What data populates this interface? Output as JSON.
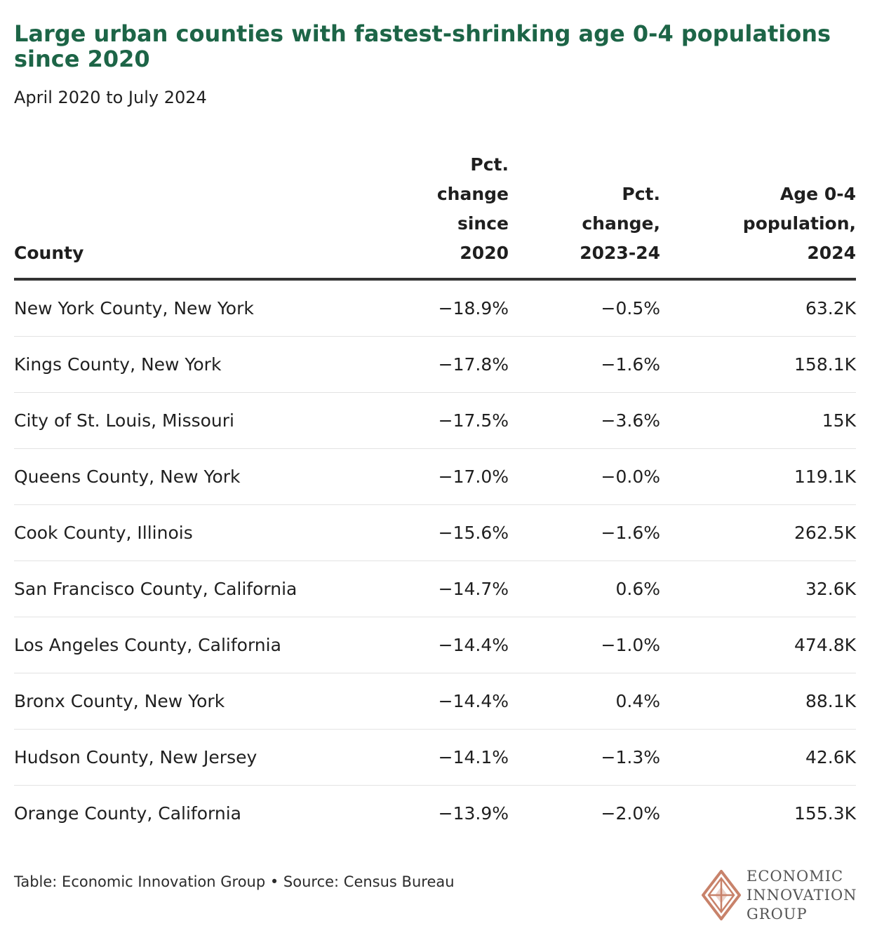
{
  "chart_data": {
    "type": "table",
    "title": "Large urban counties with fastest-shrinking age 0-4 populations since 2020",
    "subtitle": "April 2020 to July 2024",
    "columns": [
      "County",
      "Pct.\nchange\nsince\n2020",
      "Pct.\nchange,\n2023-24",
      "Age 0-4\npopulation,\n2024"
    ],
    "rows": [
      [
        "New York County, New York",
        "−18.9%",
        "−0.5%",
        "63.2K"
      ],
      [
        "Kings County, New York",
        "−17.8%",
        "−1.6%",
        "158.1K"
      ],
      [
        "City of St. Louis, Missouri",
        "−17.5%",
        "−3.6%",
        "15K"
      ],
      [
        "Queens County, New York",
        "−17.0%",
        "−0.0%",
        "119.1K"
      ],
      [
        "Cook County, Illinois",
        "−15.6%",
        "−1.6%",
        "262.5K"
      ],
      [
        "San Francisco County, California",
        "−14.7%",
        "0.6%",
        "32.6K"
      ],
      [
        "Los Angeles County, California",
        "−14.4%",
        "−1.0%",
        "474.8K"
      ],
      [
        "Bronx County, New York",
        "−14.4%",
        "0.4%",
        "88.1K"
      ],
      [
        "Hudson County, New Jersey",
        "−14.1%",
        "−1.3%",
        "42.6K"
      ],
      [
        "Orange County, California",
        "−13.9%",
        "−2.0%",
        "155.3K"
      ]
    ],
    "footer": "Table: Economic Innovation Group • Source: Census Bureau"
  },
  "logo": {
    "lines": [
      "ECONOMIC",
      "INNOVATION",
      "GROUP"
    ]
  },
  "colors": {
    "title": "#1d6547",
    "logo_mark": "#c8826a",
    "rule": "#333333",
    "row_divider": "#e3e3e3"
  }
}
